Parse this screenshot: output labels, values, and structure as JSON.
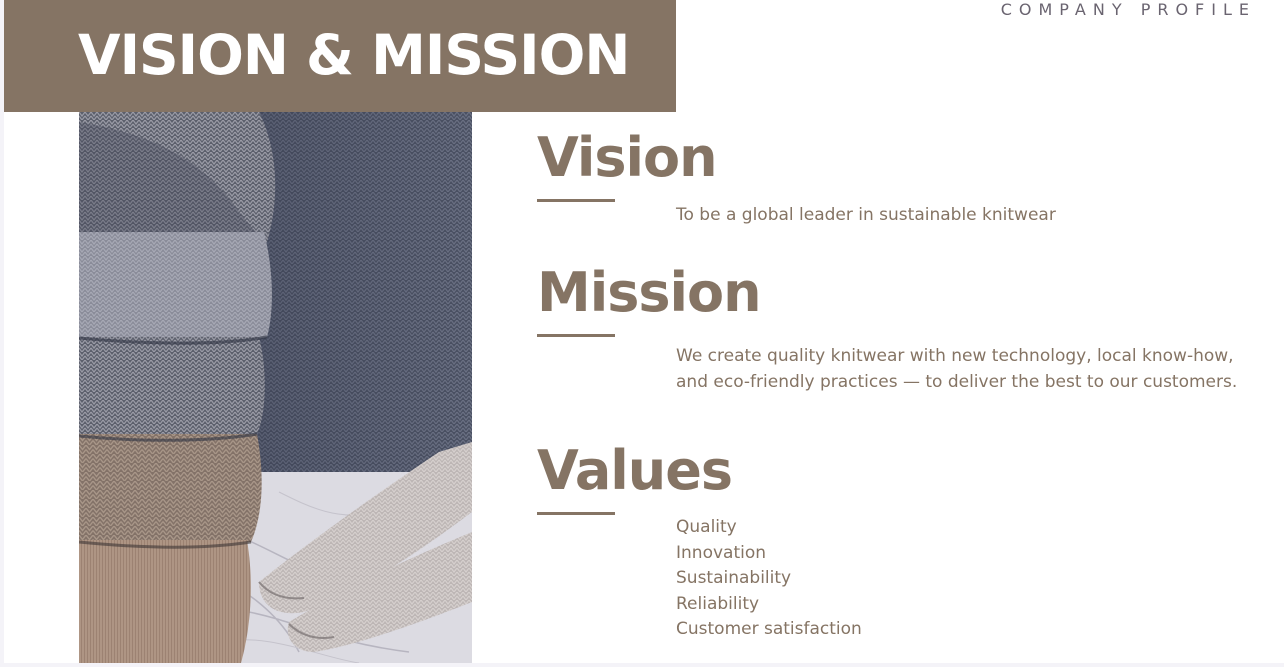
{
  "header": {
    "eyebrow": "COMPANY PROFILE",
    "title": "VISION & MISSION"
  },
  "image": {
    "icon": "stacked-knit-sweaters-photo"
  },
  "sections": {
    "vision": {
      "heading": "Vision",
      "text": "To be a global leader in sustainable knitwear"
    },
    "mission": {
      "heading": "Mission",
      "text": "We create quality knitwear with new technology, local know-how, and eco-friendly practices — to deliver the best to our customers."
    },
    "values": {
      "heading": "Values",
      "items": [
        "Quality",
        "Innovation",
        "Sustainability",
        "Reliability",
        "Customer satisfaction"
      ]
    }
  },
  "colors": {
    "accent": "#857464",
    "background": "#ffffff",
    "eyebrow": "#6a6470"
  }
}
